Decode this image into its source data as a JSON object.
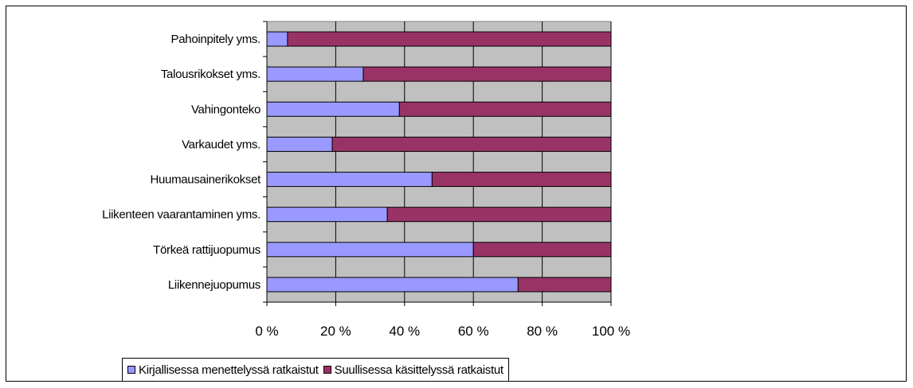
{
  "chart_data": {
    "type": "bar",
    "orientation": "horizontal",
    "stacked": "percent",
    "categories": [
      "Pahoinpitely yms.",
      "Talousrikokset yms.",
      "Vahingonteko",
      "Varkaudet yms.",
      "Huumausainerikokset",
      "Liikenteen vaarantaminen yms.",
      "Törkeä rattijuopumus",
      "Liikennejuopumus"
    ],
    "series": [
      {
        "name": "Kirjallisessa menettelyssä ratkaistut",
        "color": "#9999ff",
        "values": [
          6,
          28,
          38.5,
          19,
          48,
          35,
          60,
          73
        ]
      },
      {
        "name": "Suullisessa käsittelyssä ratkaistut",
        "color": "#993366",
        "values": [
          94,
          72,
          61.5,
          81,
          52,
          65,
          40,
          27
        ]
      }
    ],
    "xlim": [
      0,
      100
    ],
    "x_ticks": [
      "0 %",
      "20 %",
      "40 %",
      "60 %",
      "80 %",
      "100 %"
    ],
    "grid": true,
    "plot_background": "#c0c0c0",
    "legend_position": "bottom"
  }
}
